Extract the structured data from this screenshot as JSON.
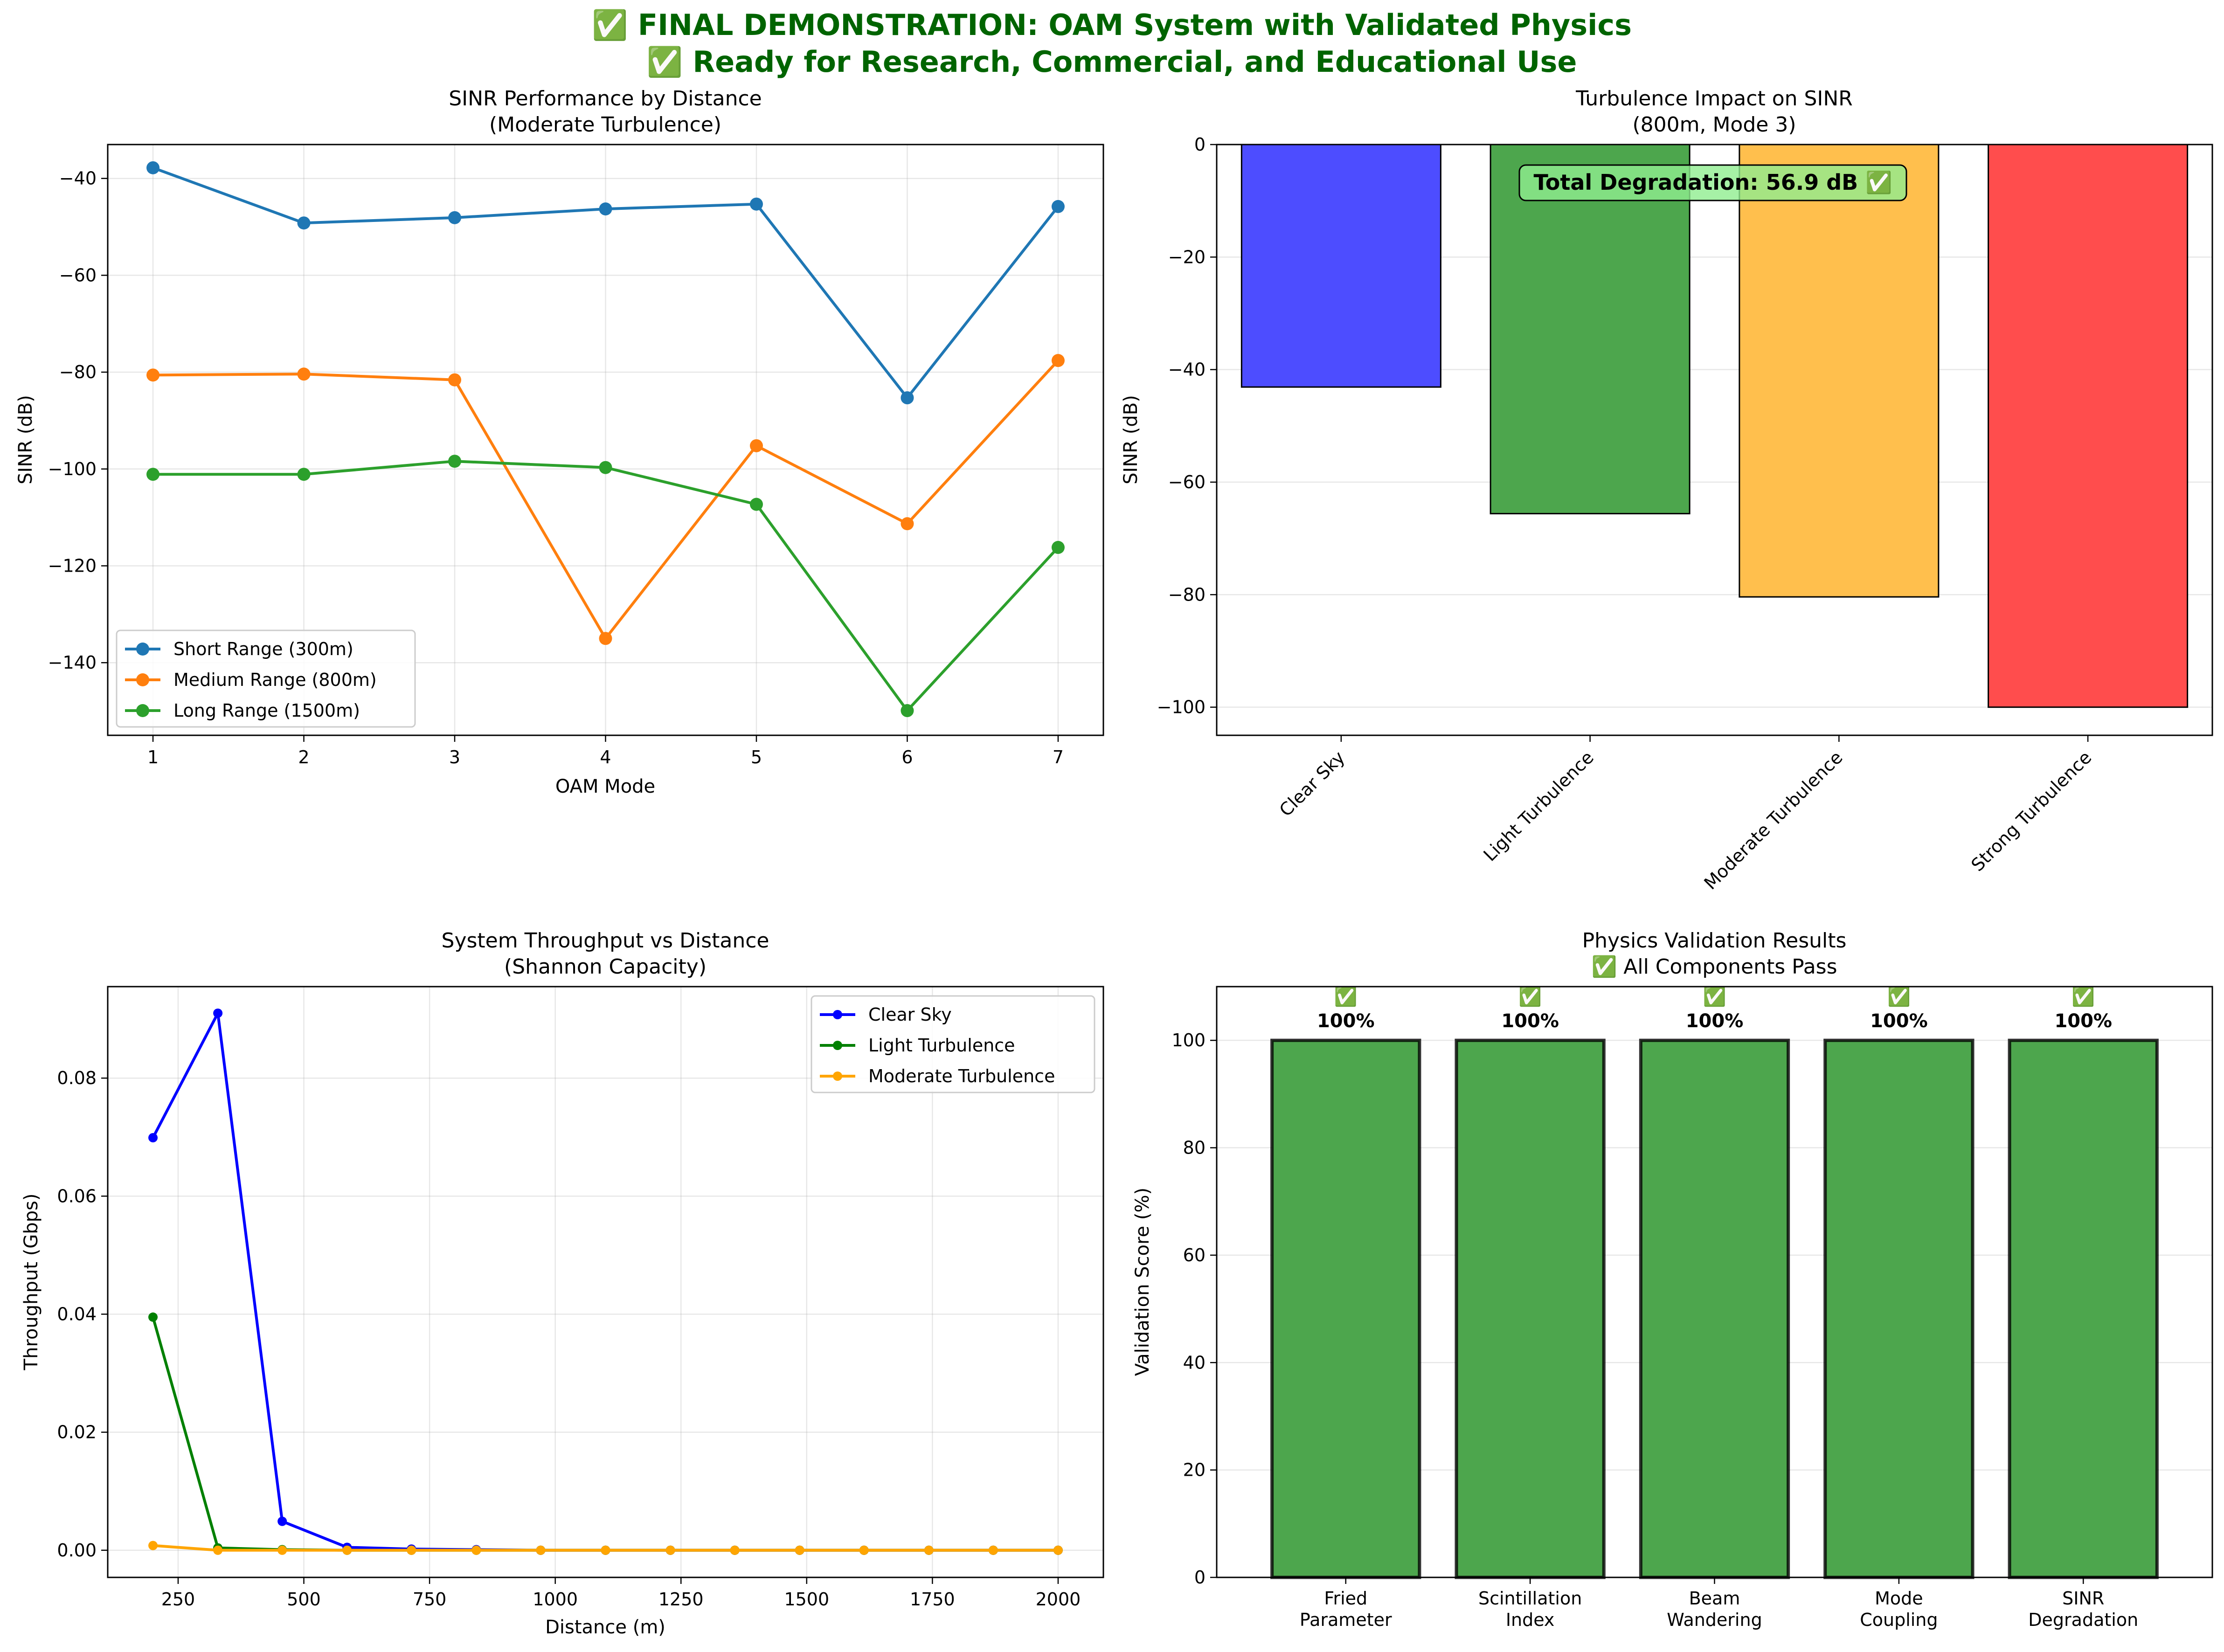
{
  "figure": {
    "title_line1": "✅ FINAL DEMONSTRATION: OAM System with Validated Physics",
    "title_line2": "✅ Ready for Research, Commercial, and Educational Use",
    "title_color": "#006400"
  },
  "chart_data": [
    {
      "id": "sinr_by_distance",
      "type": "line",
      "title": "SINR Performance by Distance",
      "subtitle": "(Moderate Turbulence)",
      "xlabel": "OAM Mode",
      "ylabel": "SINR (dB)",
      "x": [
        1,
        2,
        3,
        4,
        5,
        6,
        7
      ],
      "xlim": [
        0.7,
        7.3
      ],
      "ylim": [
        -155,
        -33
      ],
      "xticks": [
        1,
        2,
        3,
        4,
        5,
        6,
        7
      ],
      "yticks": [
        -140,
        -120,
        -100,
        -80,
        -60,
        -40
      ],
      "grid": true,
      "legend_position": "lower-left",
      "series": [
        {
          "name": "Short Range (300m)",
          "color": "#1f77b4",
          "values": [
            -37.8,
            -49.2,
            -48.1,
            -46.3,
            -45.3,
            -85.3,
            -45.8
          ]
        },
        {
          "name": "Medium Range (800m)",
          "color": "#ff7f0e",
          "values": [
            -80.6,
            -80.4,
            -81.6,
            -135.0,
            -95.2,
            -111.3,
            -77.6
          ]
        },
        {
          "name": "Long Range (1500m)",
          "color": "#2ca02c",
          "values": [
            -101.1,
            -101.1,
            -98.4,
            -99.7,
            -107.3,
            -149.9,
            -116.2
          ]
        }
      ]
    },
    {
      "id": "turbulence_impact",
      "type": "bar",
      "title": "Turbulence Impact on SINR",
      "subtitle": "(800m, Mode 3)",
      "ylabel": "SINR (dB)",
      "categories": [
        "Clear Sky",
        "Light Turbulence",
        "Moderate Turbulence",
        "Strong Turbulence"
      ],
      "values": [
        -43.1,
        -65.6,
        -80.4,
        -100.0
      ],
      "colors": [
        "#4d4dff",
        "#4da64d",
        "#ffbf4d",
        "#ff4d4d"
      ],
      "ylim": [
        -105,
        0
      ],
      "yticks": [
        -100,
        -80,
        -60,
        -40,
        -20,
        0
      ],
      "grid": true,
      "annotation": "Total Degradation: 56.9 dB ✅",
      "annotation_color": "#90ee90"
    },
    {
      "id": "throughput_vs_distance",
      "type": "line",
      "title": "System Throughput vs Distance",
      "subtitle": "(Shannon Capacity)",
      "xlabel": "Distance (m)",
      "ylabel": "Throughput (Gbps)",
      "x": [
        200,
        329,
        457,
        586,
        714,
        843,
        971,
        1100,
        1229,
        1357,
        1486,
        1614,
        1743,
        1871,
        2000
      ],
      "xlim": [
        110,
        2090
      ],
      "ylim": [
        -0.0046,
        0.0955
      ],
      "xticks": [
        250,
        500,
        750,
        1000,
        1250,
        1500,
        1750,
        2000
      ],
      "yticks": [
        0.0,
        0.02,
        0.04,
        0.06,
        0.08
      ],
      "ytick_labels": [
        "0.00",
        "0.02",
        "0.04",
        "0.06",
        "0.08"
      ],
      "grid": true,
      "legend_position": "top-right",
      "series": [
        {
          "name": "Clear Sky",
          "color": "#0000ff",
          "values": [
            0.0699,
            0.091,
            0.0049,
            0.0005,
            0.0002,
            0.0001,
            0.0,
            0.0,
            0.0,
            0.0,
            0.0,
            0.0,
            0.0,
            0.0,
            0.0
          ]
        },
        {
          "name": "Light Turbulence",
          "color": "#008000",
          "values": [
            0.0395,
            0.0004,
            0.0001,
            0.0,
            0.0,
            0.0,
            0.0,
            0.0,
            0.0,
            0.0,
            0.0,
            0.0,
            0.0,
            0.0,
            0.0
          ]
        },
        {
          "name": "Moderate Turbulence",
          "color": "#ffa500",
          "values": [
            0.0008,
            0.0,
            0.0,
            0.0,
            0.0,
            0.0,
            0.0,
            0.0,
            0.0,
            0.0,
            0.0,
            0.0,
            0.0,
            0.0,
            0.0
          ]
        }
      ]
    },
    {
      "id": "physics_validation",
      "type": "bar",
      "title": "Physics Validation Results",
      "subtitle": "✅ All Components Pass",
      "ylabel": "Validation Score (%)",
      "categories": [
        [
          "Fried",
          "Parameter"
        ],
        [
          "Scintillation",
          "Index"
        ],
        [
          "Beam",
          "Wandering"
        ],
        [
          "Mode",
          "Coupling"
        ],
        [
          "SINR",
          "Degradation"
        ]
      ],
      "values": [
        100,
        100,
        100,
        100,
        100
      ],
      "value_labels": [
        "100%",
        "100%",
        "100%",
        "100%",
        "100%"
      ],
      "check_mark": "✅",
      "color": "#4da64d",
      "ylim": [
        0,
        110
      ],
      "yticks": [
        0,
        20,
        40,
        60,
        80,
        100
      ],
      "grid": true
    }
  ]
}
